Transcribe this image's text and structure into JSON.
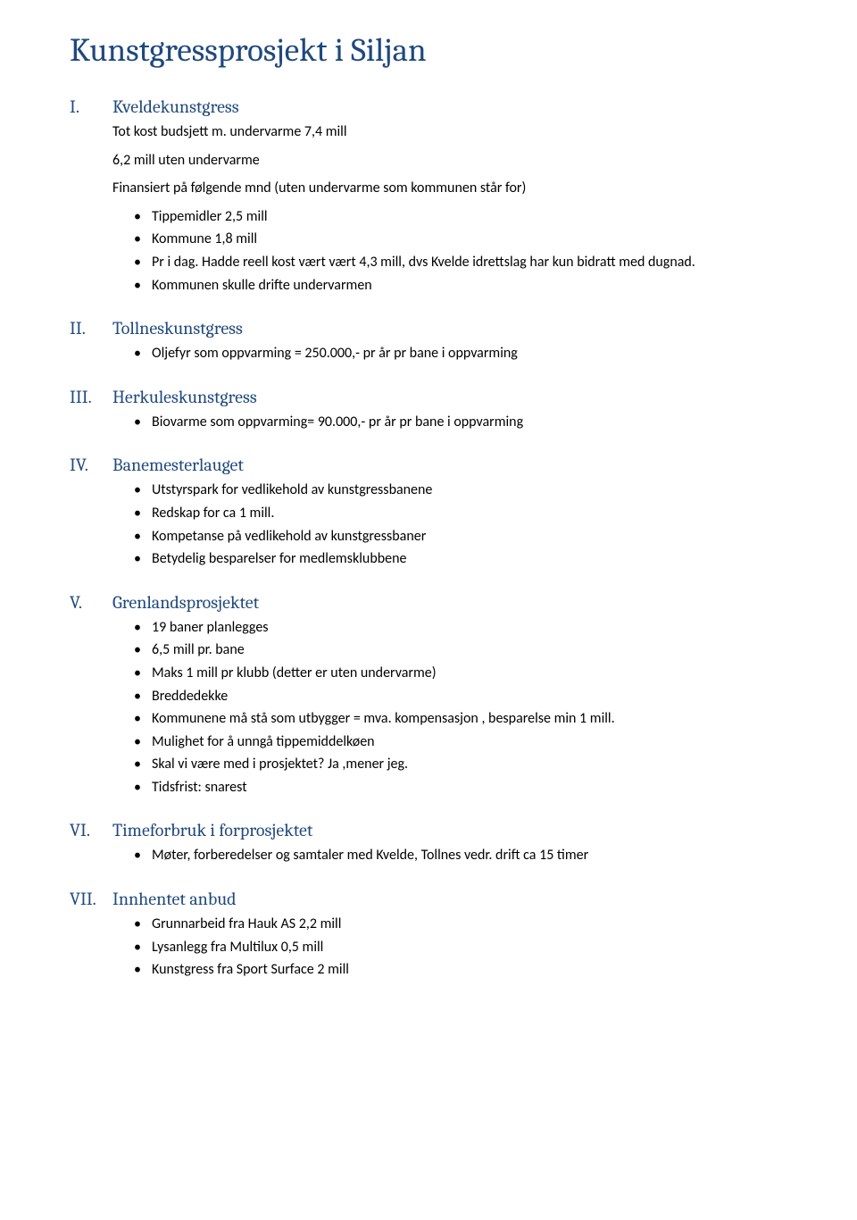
{
  "title": "Kunstgressprosjekt i Siljan",
  "sections": [
    {
      "num": "I.",
      "heading": "Kveldekunstgress",
      "paragraphs": [
        "Tot kost budsjett m. undervarme 7,4 mill",
        "6,2 mill uten undervarme",
        "Finansiert på følgende mnd (uten undervarme som kommunen står for)"
      ],
      "bullets": [
        "Tippemidler 2,5 mill",
        "Kommune 1,8 mill",
        "Pr i dag. Hadde reell kost vært vært 4,3 mill, dvs Kvelde idrettslag har kun bidratt med dugnad.",
        "Kommunen skulle drifte undervarmen"
      ]
    },
    {
      "num": "II.",
      "heading": "Tollneskunstgress",
      "paragraphs": [],
      "bullets": [
        "Oljefyr som oppvarming = 250.000,- pr år pr bane i oppvarming"
      ]
    },
    {
      "num": "III.",
      "heading": "Herkuleskunstgress",
      "paragraphs": [],
      "bullets": [
        "Biovarme som oppvarming= 90.000,- pr år pr bane i oppvarming"
      ]
    },
    {
      "num": "IV.",
      "heading": "Banemesterlauget",
      "paragraphs": [],
      "bullets": [
        "Utstyrspark for vedlikehold av kunstgressbanene",
        "Redskap for ca 1 mill.",
        "Kompetanse på vedlikehold av kunstgressbaner",
        "Betydelig besparelser for medlemsklubbene"
      ]
    },
    {
      "num": "V.",
      "heading": "Grenlandsprosjektet",
      "paragraphs": [],
      "bullets": [
        "19 baner planlegges",
        "6,5 mill pr. bane",
        "Maks 1 mill pr klubb (detter er uten undervarme)",
        "Breddedekke",
        "Kommunene må stå som utbygger = mva. kompensasjon , besparelse min 1 mill.",
        "Mulighet for å unngå tippemiddelkøen",
        "Skal vi være med i prosjektet? Ja ,mener jeg.",
        "Tidsfrist: snarest"
      ]
    },
    {
      "num": "VI.",
      "heading": "Timeforbruk i forprosjektet",
      "paragraphs": [],
      "bullets": [
        "Møter, forberedelser og samtaler med Kvelde, Tollnes vedr. drift ca 15 timer"
      ]
    },
    {
      "num": "VII.",
      "heading": "Innhentet anbud",
      "paragraphs": [],
      "bullets": [
        "Grunnarbeid fra Hauk AS 2,2 mill",
        "Lysanlegg fra Multilux 0,5 mill",
        "Kunstgress fra Sport Surface 2 mill"
      ]
    }
  ]
}
